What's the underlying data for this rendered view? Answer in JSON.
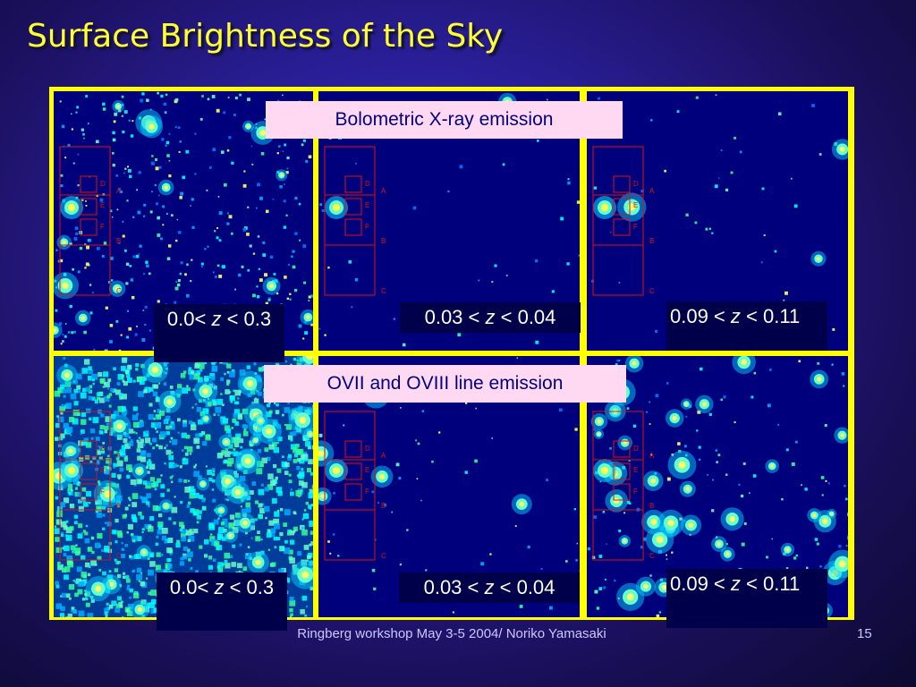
{
  "title": "Surface Brightness of the Sky",
  "region_labels": [
    "D",
    "A",
    "E",
    "F",
    "B",
    "C"
  ],
  "rows": [
    {
      "caption": "Bolometric X-ray emission",
      "panels": [
        {
          "prefix": "0.0<",
          "var": "z",
          "suffix": "< 0.3"
        },
        {
          "prefix": "0.03 <",
          "var": "z",
          "suffix": "< 0.04"
        },
        {
          "prefix": "0.09 <",
          "var": "z",
          "suffix": "< 0.11"
        }
      ]
    },
    {
      "caption": "OVII and OVIII line emission",
      "panels": [
        {
          "prefix": "0.0<",
          "var": "z",
          "suffix": "< 0.3"
        },
        {
          "prefix": "0.03 <",
          "var": "z",
          "suffix": "< 0.04"
        },
        {
          "prefix": "0.09 <",
          "var": "z",
          "suffix": "< 0.11"
        }
      ]
    }
  ],
  "footer": "Ringberg workshop May 3-5 2004/ Noriko Yamasaki",
  "page_number": "15"
}
